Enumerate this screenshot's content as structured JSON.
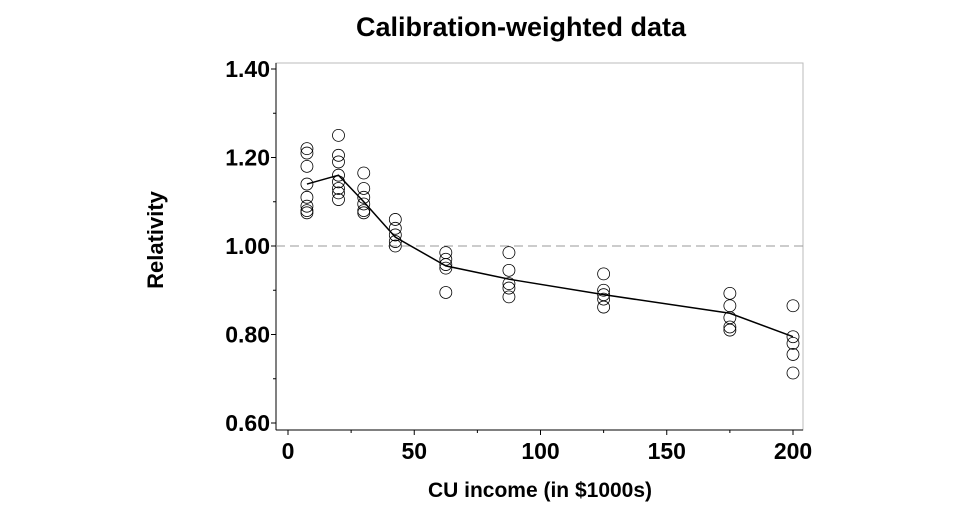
{
  "chart_data": {
    "type": "scatter",
    "title": "Calibration-weighted data",
    "xlabel": "CU income (in $1000s)",
    "ylabel": "Relativity",
    "xlim": [
      -5,
      205
    ],
    "ylim": [
      0.6,
      1.4
    ],
    "x_ticks": [
      0,
      50,
      100,
      150,
      200
    ],
    "x_tick_labels": [
      "0",
      "50",
      "100",
      "150",
      "200"
    ],
    "y_ticks": [
      0.6,
      0.8,
      1.0,
      1.2,
      1.4
    ],
    "y_tick_labels": [
      "0.60",
      "0.80",
      "1.00",
      "1.20",
      "1.40"
    ],
    "reference_line": {
      "y": 1.0,
      "style": "dashed",
      "color": "#999999"
    },
    "grid": false,
    "points": [
      {
        "x": 7.5,
        "y": [
          1.22,
          1.21,
          1.18,
          1.14,
          1.11,
          1.09,
          1.08,
          1.075
        ]
      },
      {
        "x": 20,
        "y": [
          1.25,
          1.205,
          1.19,
          1.16,
          1.145,
          1.13,
          1.12,
          1.105
        ]
      },
      {
        "x": 30,
        "y": [
          1.165,
          1.13,
          1.11,
          1.095,
          1.08,
          1.075
        ]
      },
      {
        "x": 42.5,
        "y": [
          1.06,
          1.04,
          1.025,
          1.01,
          1.0
        ]
      },
      {
        "x": 62.5,
        "y": [
          0.985,
          0.97,
          0.958,
          0.95,
          0.895
        ]
      },
      {
        "x": 87.5,
        "y": [
          0.985,
          0.945,
          0.915,
          0.905,
          0.885
        ]
      },
      {
        "x": 125,
        "y": [
          0.937,
          0.9,
          0.89,
          0.88,
          0.862
        ]
      },
      {
        "x": 175,
        "y": [
          0.893,
          0.865,
          0.838,
          0.817,
          0.81
        ]
      },
      {
        "x": 200,
        "y": [
          0.865,
          0.795,
          0.78,
          0.755,
          0.713
        ]
      }
    ],
    "series": [
      {
        "type": "line",
        "x": [
          7.5,
          20,
          30,
          42.5,
          62.5,
          87.5,
          125,
          175,
          200
        ],
        "y": [
          1.14,
          1.16,
          1.1,
          1.02,
          0.955,
          0.925,
          0.89,
          0.848,
          0.795
        ],
        "color": "#000000"
      }
    ],
    "marker": "open-circle"
  }
}
